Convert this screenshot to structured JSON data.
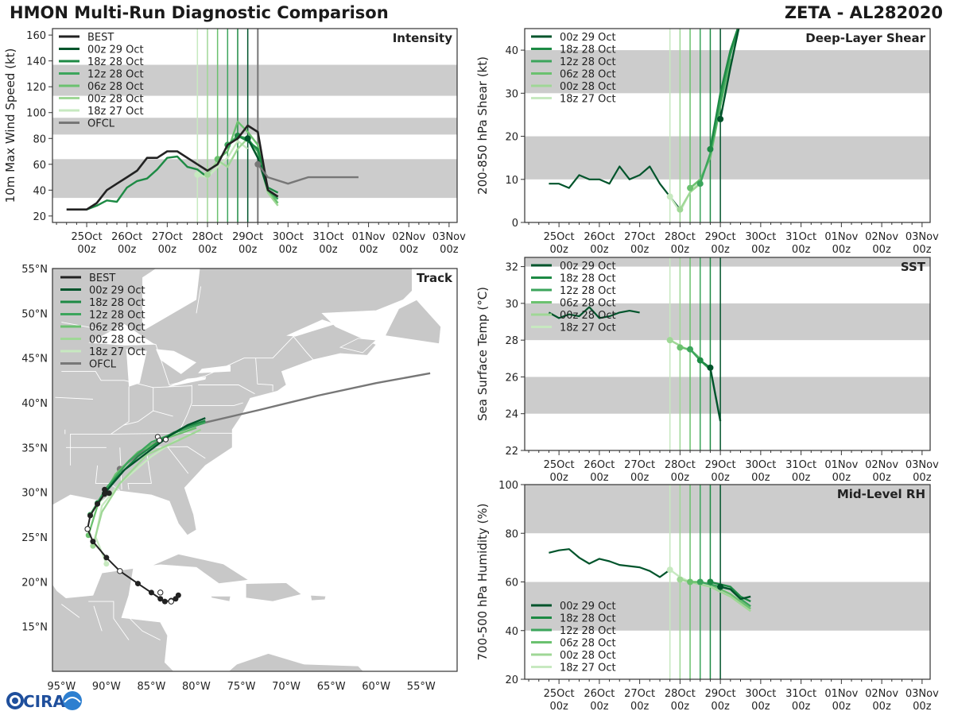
{
  "header": {
    "title": "HMON Multi-Run Diagnostic Comparison",
    "storm": "ZETA - AL282020"
  },
  "logo": {
    "text": "CIRA"
  },
  "colors": {
    "best": "#222222",
    "ofcl": "#777777",
    "runs": [
      "#00542b",
      "#1d8a44",
      "#3ca55c",
      "#6bc16f",
      "#9fd796",
      "#c7e9c0"
    ],
    "band": "#cccccc",
    "land": "#c8c8c8"
  },
  "time_axis": {
    "labels": [
      "25Oct 00z",
      "26Oct 00z",
      "27Oct 00z",
      "28Oct 00z",
      "29Oct 00z",
      "30Oct 00z",
      "31Oct 00z",
      "01Nov 00z",
      "02Nov 00z",
      "03Nov 00z"
    ],
    "init_lines_days": [
      2.75,
      3.0,
      3.25,
      3.5,
      3.75,
      4.0
    ]
  },
  "chart_data": [
    {
      "id": "intensity",
      "type": "line",
      "title": "Intensity",
      "ylabel": "10m Max Wind Speed (kt)",
      "ylim": [
        15,
        165
      ],
      "yticks": [
        20,
        40,
        60,
        80,
        100,
        120,
        140,
        160
      ],
      "bands": [
        [
          34,
          64
        ],
        [
          83,
          96
        ],
        [
          113,
          137
        ]
      ],
      "extra_vline_day": 4.25,
      "legend": [
        "BEST",
        "00z 29 Oct",
        "18z 28 Oct",
        "12z 28 Oct",
        "06z 28 Oct",
        "00z 28 Oct",
        "18z 27 Oct",
        "OFCL"
      ],
      "best": {
        "x": [
          -0.5,
          0,
          0.25,
          0.5,
          0.75,
          1.0,
          1.25,
          1.5,
          1.75,
          2.0,
          2.25,
          2.5,
          2.75,
          3.0,
          3.25,
          3.5,
          3.75,
          4.0,
          4.25,
          4.5,
          4.75
        ],
        "y": [
          25,
          25,
          30,
          40,
          45,
          50,
          55,
          65,
          65,
          70,
          70,
          65,
          60,
          55,
          60,
          75,
          80,
          90,
          85,
          40,
          35
        ]
      },
      "runs": [
        {
          "name": "00z 29 Oct",
          "x": [
            4.0,
            4.25,
            4.5,
            4.75
          ],
          "y": [
            80,
            65,
            40,
            35
          ]
        },
        {
          "name": "18z 28 Oct",
          "x": [
            3.75,
            4.0,
            4.25,
            4.5,
            4.75
          ],
          "y": [
            82,
            78,
            72,
            42,
            38
          ]
        },
        {
          "name": "12z 28 Oct",
          "x": [
            3.5,
            3.75,
            4.0,
            4.25,
            4.5,
            4.75
          ],
          "y": [
            75,
            82,
            80,
            70,
            40,
            33
          ]
        },
        {
          "name": "06z 28 Oct",
          "x": [
            3.25,
            3.5,
            3.75,
            4.0,
            4.25,
            4.5,
            4.75
          ],
          "y": [
            64,
            70,
            93,
            85,
            75,
            40,
            30
          ]
        },
        {
          "name": "00z 28 Oct",
          "x": [
            3.0,
            3.25,
            3.5,
            3.75,
            4.0,
            4.25,
            4.5,
            4.75
          ],
          "y": [
            52,
            63,
            58,
            72,
            80,
            66,
            38,
            28
          ]
        },
        {
          "name": "18z 27 Oct",
          "x": [
            2.75,
            3.0,
            3.25,
            3.5,
            3.75,
            4.0
          ],
          "y": [
            52,
            50,
            58,
            65,
            78,
            72
          ]
        },
        {
          "name": "pre",
          "x": [
            0,
            0.25,
            0.5,
            0.75,
            1.0,
            1.25,
            1.5,
            1.75,
            2.0,
            2.25,
            2.5,
            2.75,
            3.0
          ],
          "y": [
            25,
            28,
            32,
            31,
            42,
            47,
            49,
            56,
            65,
            66,
            58,
            56,
            50
          ]
        }
      ],
      "ofcl": {
        "x": [
          4.25,
          4.5,
          5.0,
          5.5,
          6.0,
          6.75
        ],
        "y": [
          60,
          50,
          45,
          50,
          50,
          50
        ]
      }
    },
    {
      "id": "shear",
      "type": "line",
      "title": "Deep-Layer Shear",
      "ylabel": "200-850 hPa Shear (kt)",
      "ylim": [
        0,
        45
      ],
      "yticks": [
        0,
        10,
        20,
        30,
        40
      ],
      "bands": [
        [
          10,
          20
        ],
        [
          30,
          40
        ]
      ],
      "legend": [
        "00z 29 Oct",
        "18z 28 Oct",
        "12z 28 Oct",
        "06z 28 Oct",
        "00z 28 Oct",
        "18z 27 Oct"
      ],
      "history": {
        "x": [
          -0.25,
          0,
          0.25,
          0.5,
          0.75,
          1.0,
          1.25,
          1.5,
          1.75,
          2.0,
          2.25,
          2.5,
          2.75,
          3.0
        ],
        "y": [
          9,
          9,
          8,
          11,
          10,
          10,
          9,
          13,
          10,
          11,
          13,
          9,
          6,
          3
        ]
      },
      "runs": [
        {
          "name": "00z 29 Oct",
          "x": [
            4.0,
            4.25,
            4.5
          ],
          "y": [
            24,
            36,
            47
          ]
        },
        {
          "name": "18z 28 Oct",
          "x": [
            3.75,
            4.0,
            4.25,
            4.5
          ],
          "y": [
            17,
            30,
            40,
            47
          ]
        },
        {
          "name": "12z 28 Oct",
          "x": [
            3.5,
            3.75,
            4.0,
            4.25,
            4.5
          ],
          "y": [
            9,
            16,
            28,
            39,
            47
          ]
        },
        {
          "name": "06z 28 Oct",
          "x": [
            3.25,
            3.5,
            3.75,
            4.0,
            4.25
          ],
          "y": [
            8,
            10,
            15,
            27,
            38
          ]
        },
        {
          "name": "00z 28 Oct",
          "x": [
            3.0,
            3.25,
            3.5,
            3.75,
            4.0
          ],
          "y": [
            3,
            7,
            9,
            16,
            30
          ]
        },
        {
          "name": "18z 27 Oct",
          "x": [
            2.75,
            3.0,
            3.25,
            3.5
          ],
          "y": [
            6,
            2.5,
            7,
            10
          ]
        }
      ]
    },
    {
      "id": "sst",
      "type": "line",
      "title": "SST",
      "ylabel": "Sea Surface Temp (°C)",
      "ylim": [
        22,
        32.5
      ],
      "yticks": [
        22,
        24,
        26,
        28,
        30,
        32
      ],
      "bands": [
        [
          24,
          26
        ],
        [
          28,
          30
        ],
        [
          32,
          33
        ]
      ],
      "legend": [
        "00z 29 Oct",
        "18z 28 Oct",
        "12z 28 Oct",
        "06z 28 Oct",
        "00z 28 Oct",
        "18z 27 Oct"
      ],
      "history": {
        "x": [
          -0.25,
          0,
          0.25,
          0.5,
          0.75,
          1.0,
          1.25,
          1.5,
          1.75,
          2.0
        ],
        "y": [
          29.5,
          29.2,
          29.4,
          29.3,
          29.8,
          29.2,
          29.3,
          29.5,
          29.6,
          29.5
        ]
      },
      "runs": [
        {
          "name": "00z 29 Oct",
          "x": [
            3.75,
            4.0
          ],
          "y": [
            26.5,
            23.6
          ]
        },
        {
          "name": "18z 28 Oct",
          "x": [
            3.5,
            3.75
          ],
          "y": [
            26.9,
            26.5
          ]
        },
        {
          "name": "12z 28 Oct",
          "x": [
            3.25,
            3.5,
            3.75
          ],
          "y": [
            27.5,
            26.9,
            26.4
          ]
        },
        {
          "name": "06z 28 Oct",
          "x": [
            3.0,
            3.25,
            3.5
          ],
          "y": [
            27.6,
            27.5,
            27.0
          ]
        },
        {
          "name": "00z 28 Oct",
          "x": [
            2.75,
            3.0,
            3.25
          ],
          "y": [
            28.0,
            27.7,
            27.4
          ]
        },
        {
          "name": "18z 27 Oct",
          "x": [
            2.75,
            3.0
          ],
          "y": [
            28.0,
            27.7
          ]
        }
      ]
    },
    {
      "id": "rh",
      "type": "line",
      "title": "Mid-Level RH",
      "ylabel": "700-500 hPa Humidity (%)",
      "ylim": [
        20,
        100
      ],
      "yticks": [
        20,
        40,
        60,
        80,
        100
      ],
      "bands": [
        [
          40,
          60
        ],
        [
          80,
          100
        ]
      ],
      "legend": [
        "00z 29 Oct",
        "18z 28 Oct",
        "12z 28 Oct",
        "06z 28 Oct",
        "00z 28 Oct",
        "18z 27 Oct"
      ],
      "history": {
        "x": [
          -0.25,
          0,
          0.25,
          0.5,
          0.75,
          1.0,
          1.25,
          1.5,
          1.75,
          2.0,
          2.25,
          2.5,
          2.75
        ],
        "y": [
          72,
          73,
          73.5,
          70,
          67.5,
          69.5,
          68.5,
          67,
          66.5,
          66,
          64.5,
          62,
          65
        ]
      },
      "runs": [
        {
          "name": "00z 29 Oct",
          "x": [
            4.0,
            4.25,
            4.5,
            4.75
          ],
          "y": [
            58,
            57,
            53,
            54
          ]
        },
        {
          "name": "18z 28 Oct",
          "x": [
            3.75,
            4.0,
            4.25,
            4.5,
            4.75
          ],
          "y": [
            60,
            59,
            58,
            54,
            52
          ]
        },
        {
          "name": "12z 28 Oct",
          "x": [
            3.5,
            3.75,
            4.0,
            4.25,
            4.5,
            4.75
          ],
          "y": [
            60,
            59,
            58,
            57,
            53,
            50
          ]
        },
        {
          "name": "06z 28 Oct",
          "x": [
            3.25,
            3.5,
            3.75,
            4.0,
            4.25,
            4.5,
            4.75
          ],
          "y": [
            60,
            60,
            59,
            57,
            55,
            52,
            49
          ]
        },
        {
          "name": "00z 28 Oct",
          "x": [
            3.0,
            3.25,
            3.5,
            3.75,
            4.0,
            4.25,
            4.5,
            4.75
          ],
          "y": [
            61,
            60,
            59,
            58,
            56,
            54,
            51,
            48
          ]
        },
        {
          "name": "18z 27 Oct",
          "x": [
            2.75,
            3.0,
            3.25,
            3.5
          ],
          "y": [
            65,
            62,
            60,
            59
          ]
        }
      ]
    },
    {
      "id": "track",
      "type": "scatter",
      "title": "Track",
      "xlim": [
        -96,
        -51
      ],
      "ylim": [
        10,
        55
      ],
      "xticks": [
        -95,
        -90,
        -85,
        -80,
        -75,
        -70,
        -65,
        -60,
        -55
      ],
      "xticklabels": [
        "95°W",
        "90°W",
        "85°W",
        "80°W",
        "75°W",
        "70°W",
        "65°W",
        "60°W",
        "55°W"
      ],
      "yticks": [
        15,
        20,
        25,
        30,
        35,
        40,
        45,
        50,
        55
      ],
      "yticklabels": [
        "15°N",
        "20°N",
        "25°N",
        "30°N",
        "35°N",
        "40°N",
        "45°N",
        "50°N",
        "55°N"
      ],
      "legend": [
        "BEST",
        "00z 29 Oct",
        "18z 28 Oct",
        "12z 28 Oct",
        "06z 28 Oct",
        "00z 28 Oct",
        "18z 27 Oct",
        "OFCL"
      ],
      "best": {
        "lon": [
          -82.0,
          -82.3,
          -82.8,
          -83.5,
          -84.0,
          -85.0,
          -86.5,
          -88.5,
          -90.0,
          -91.5,
          -92.1,
          -91.8,
          -91.0,
          -90.2,
          -89.7,
          -90.2
        ],
        "lat": [
          18.5,
          18.1,
          17.9,
          17.8,
          18.1,
          18.8,
          19.8,
          21.2,
          22.7,
          24.5,
          25.9,
          27.4,
          28.7,
          29.8,
          29.9,
          30.3
        ]
      },
      "best_open_points": [
        {
          "lon": [
            -82.8,
            -84.0,
            -88.5,
            -92.1
          ],
          "lat": [
            17.8,
            18.8,
            21.2,
            25.9
          ]
        }
      ],
      "runs": [
        {
          "name": "00z 29 Oct",
          "lon": [
            -90.2,
            -88.0,
            -85.0,
            -83.0,
            -81.0,
            -79.0
          ],
          "lat": [
            29.9,
            32.5,
            34.8,
            36.3,
            37.5,
            38.3
          ]
        },
        {
          "name": "18z 28 Oct",
          "lon": [
            -91.0,
            -89.0,
            -86.5,
            -84.0,
            -81.5,
            -79.0
          ],
          "lat": [
            28.8,
            31.5,
            34.0,
            35.8,
            37.2,
            38.0
          ]
        },
        {
          "name": "12z 28 Oct",
          "lon": [
            -91.8,
            -90.0,
            -87.5,
            -85.0,
            -82.0,
            -79.0
          ],
          "lat": [
            27.5,
            30.5,
            33.5,
            35.6,
            36.8,
            37.8
          ]
        },
        {
          "name": "06z 28 Oct",
          "lon": [
            -92.0,
            -91.0,
            -89.0,
            -86.5,
            -83.5,
            -80.0
          ],
          "lat": [
            25.2,
            28.5,
            32.0,
            34.5,
            36.0,
            37.2
          ]
        },
        {
          "name": "00z 28 Oct",
          "lon": [
            -91.5,
            -90.5,
            -88.5,
            -85.5,
            -82.0,
            -79.5
          ],
          "lat": [
            24.0,
            27.8,
            31.0,
            34.2,
            35.8,
            37.0
          ]
        },
        {
          "name": "18z 27 Oct",
          "lon": [
            -90.0,
            -91.2,
            -90.5,
            -88.5,
            -85.0,
            -82.0
          ],
          "lat": [
            22.0,
            25.0,
            28.5,
            31.0,
            34.0,
            36.0
          ]
        }
      ],
      "ofcl": {
        "lon": [
          -88.5,
          -85.5,
          -82.5,
          -79.0,
          -73.0,
          -66.5,
          -60.0,
          -54.0
        ],
        "lat": [
          32.6,
          35.0,
          36.7,
          37.8,
          39.2,
          40.8,
          42.2,
          43.3
        ]
      },
      "ofcl_start": {
        "lon": -88.5,
        "lat": 32.6
      }
    }
  ]
}
